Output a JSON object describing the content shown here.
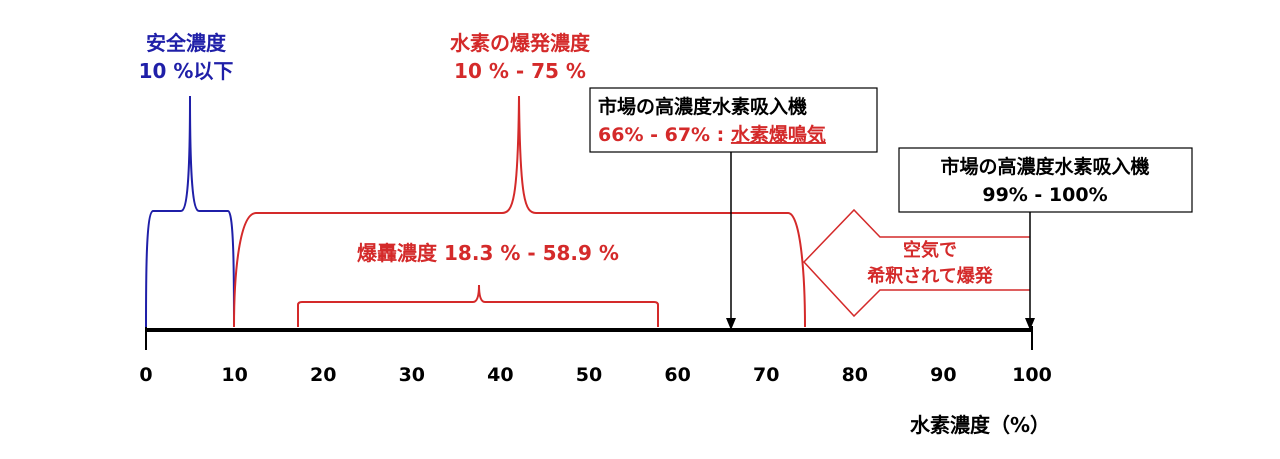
{
  "colors": {
    "safe": "#1f1fa8",
    "danger": "#d42a2a",
    "axis": "#000000"
  },
  "axis": {
    "label": "水素濃度（%）",
    "ticks": [
      "0",
      "10",
      "20",
      "30",
      "40",
      "50",
      "60",
      "70",
      "80",
      "90",
      "100"
    ],
    "range": [
      0,
      100
    ]
  },
  "safe": {
    "title": "安全濃度",
    "range_text": "10 %以下",
    "from": 0,
    "to": 10
  },
  "explosion": {
    "title": "水素の爆発濃度",
    "range_text": "10 % - 75 %",
    "from": 10,
    "to": 75
  },
  "detonation": {
    "label": "爆轟濃度 18.3 % - 58.9 %",
    "from": 18.3,
    "to": 58.9
  },
  "callout_66": {
    "line1": "市場の高濃度水素吸入機",
    "line2_prefix": "66% - 67% : ",
    "line2_emphasis": "水素爆鳴気",
    "at": 66
  },
  "callout_99": {
    "line1": "市場の高濃度水素吸入機",
    "line2": "99% - 100%",
    "at": 100
  },
  "dilution_arrow": {
    "line1": "空気で",
    "line2": "希釈されて爆発"
  }
}
